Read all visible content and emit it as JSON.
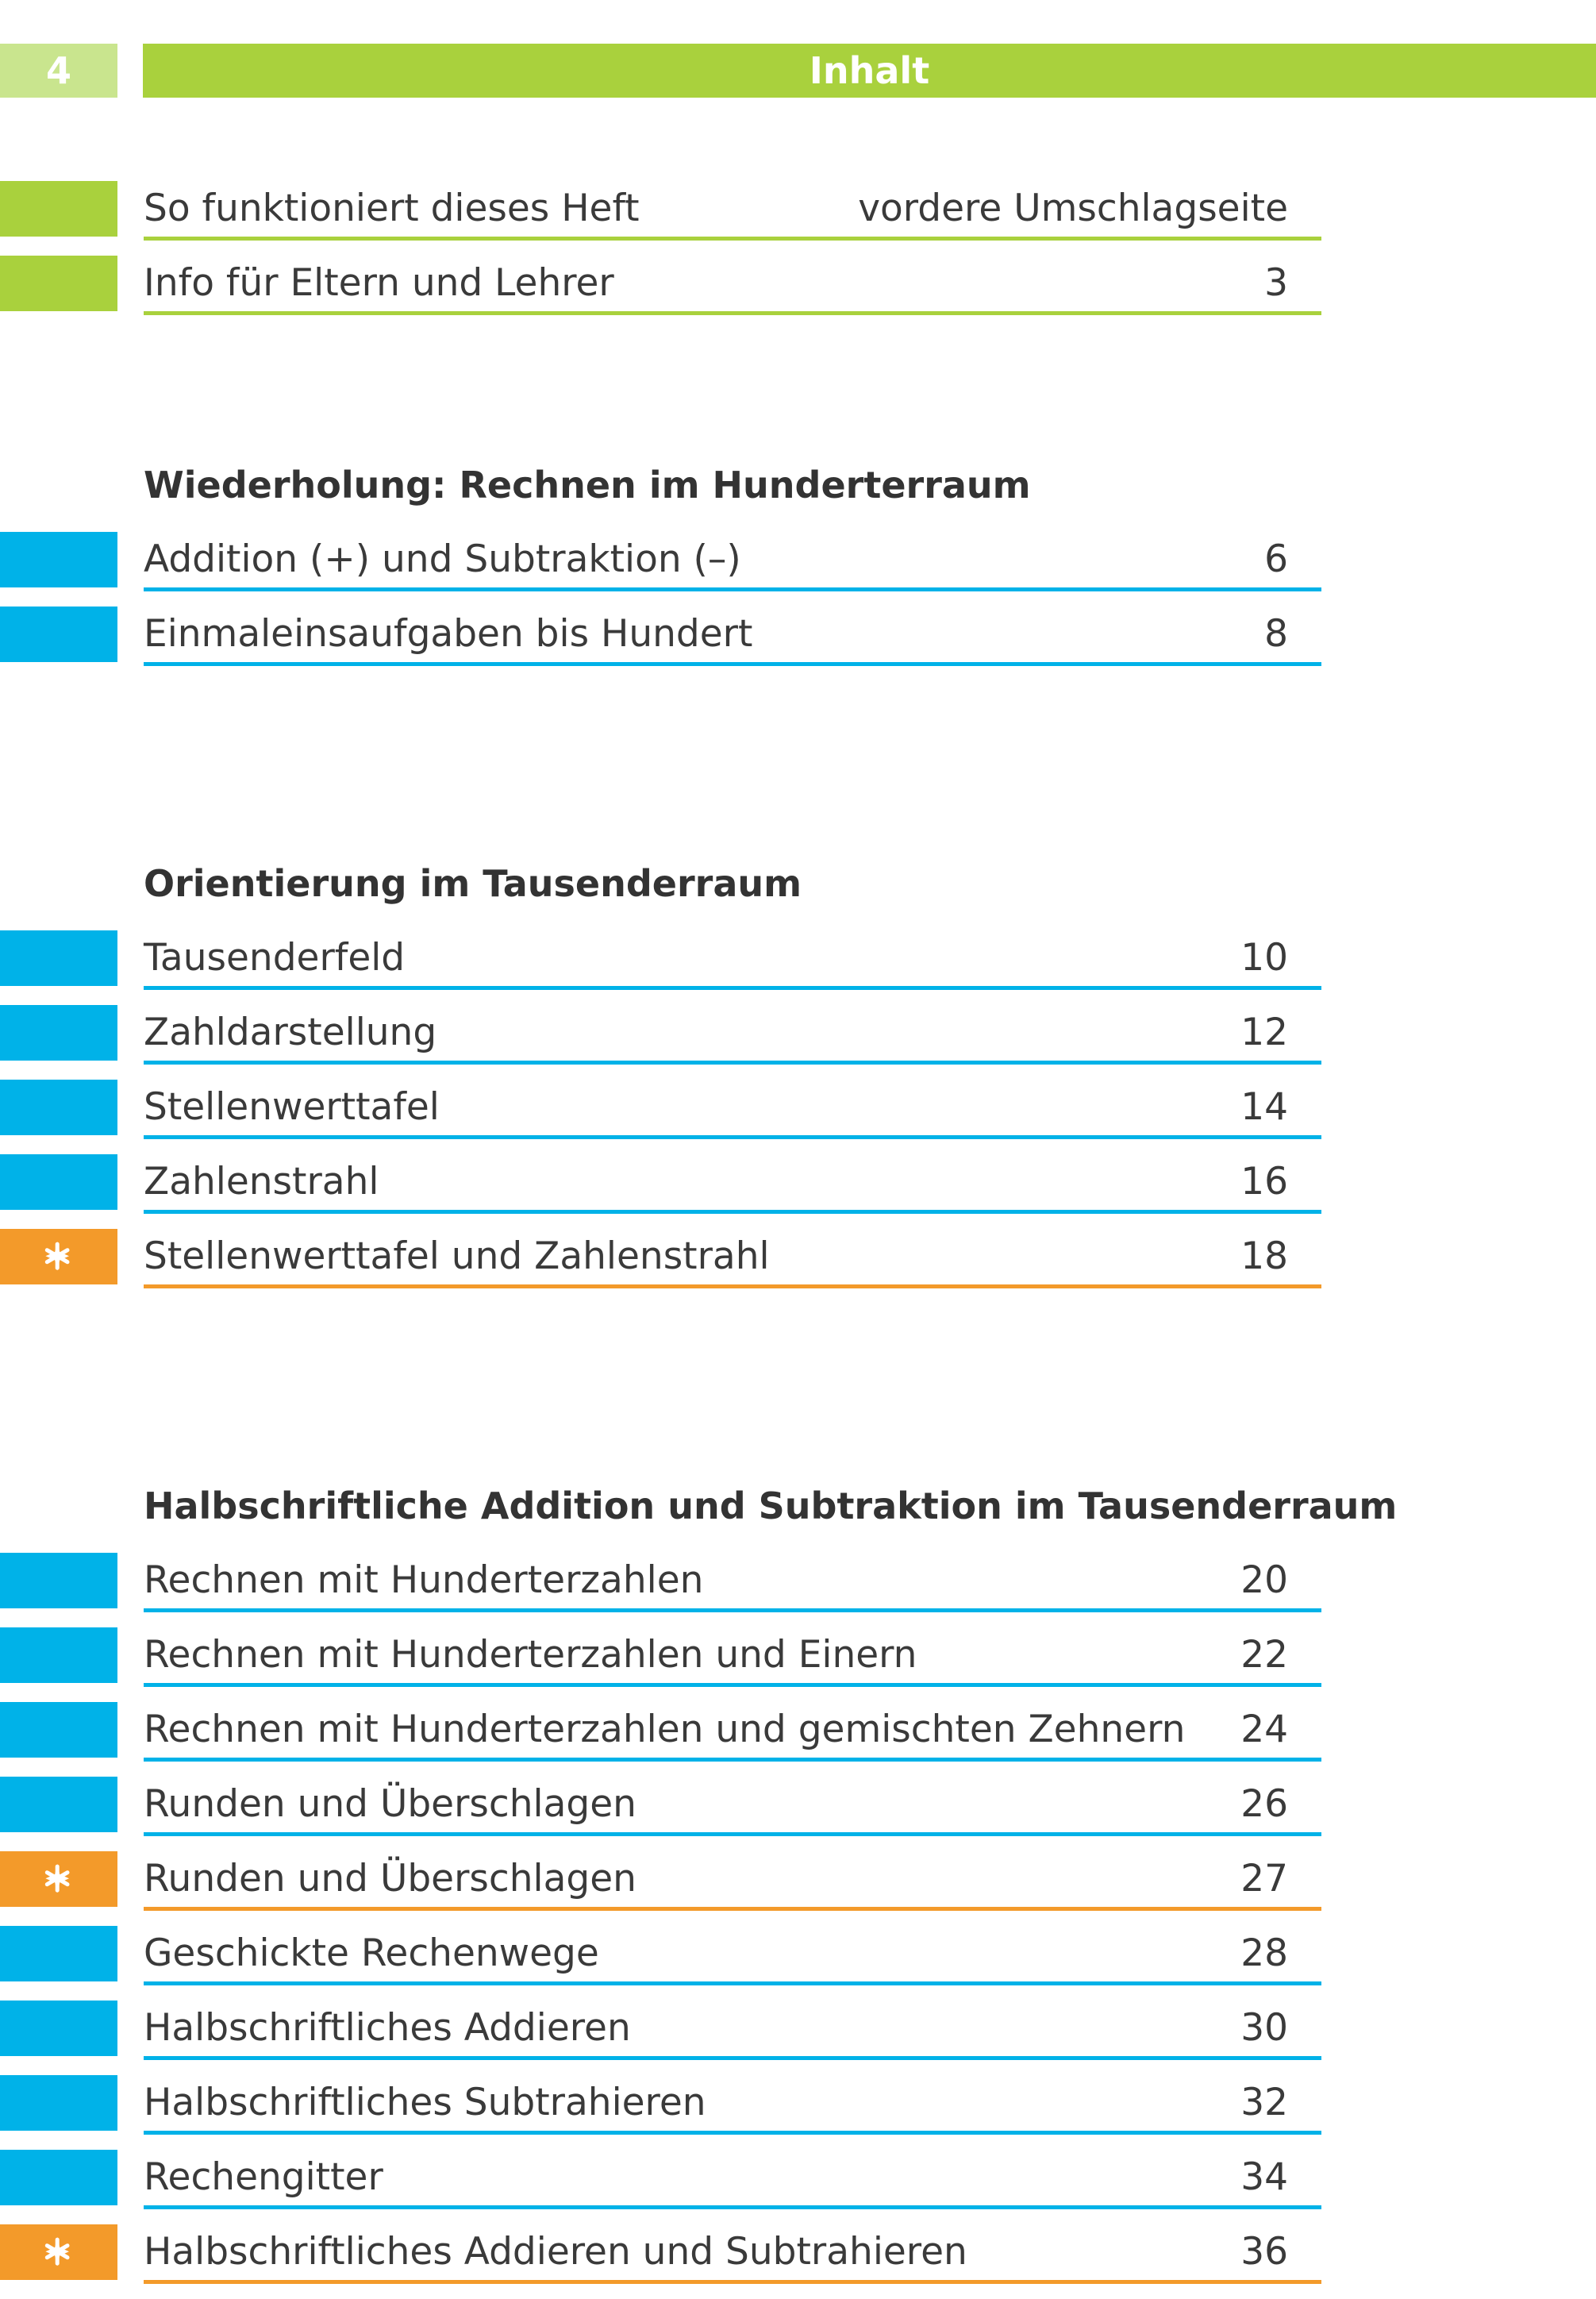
{
  "header": {
    "page_number": "4",
    "title": "Inhalt"
  },
  "colors": {
    "green": "#a9d13d",
    "light_green": "#c9e58e",
    "blue": "#00b2e8",
    "orange": "#f39a2a",
    "text": "#3a3a3a"
  },
  "intro": {
    "entries": [
      {
        "label": "So funktioniert dieses Heft",
        "page": "vordere Umschlagseite",
        "marker": "green"
      },
      {
        "label": "Info für Eltern und Lehrer",
        "page": "3",
        "marker": "green"
      }
    ]
  },
  "sections": [
    {
      "heading": "Wiederholung: Rechnen im Hunderterraum",
      "entries": [
        {
          "label": "Addition (+) und Subtraktion (–)",
          "page": "6",
          "marker": "blue"
        },
        {
          "label": "Einmaleinsaufgaben bis Hundert",
          "page": "8",
          "marker": "blue"
        }
      ]
    },
    {
      "heading": "Orientierung im Tausenderraum",
      "entries": [
        {
          "label": "Tausenderfeld",
          "page": "10",
          "marker": "blue"
        },
        {
          "label": "Zahldarstellung",
          "page": "12",
          "marker": "blue"
        },
        {
          "label": "Stellenwerttafel",
          "page": "14",
          "marker": "blue"
        },
        {
          "label": "Zahlenstrahl",
          "page": "16",
          "marker": "blue"
        },
        {
          "label": "Stellenwerttafel und Zahlenstrahl",
          "page": "18",
          "marker": "orange",
          "icon": "star-icon"
        }
      ]
    },
    {
      "heading": "Halbschriftliche Addition und Subtraktion im Tausenderraum",
      "entries": [
        {
          "label": "Rechnen mit Hunderterzahlen",
          "page": "20",
          "marker": "blue"
        },
        {
          "label": "Rechnen mit Hunderterzahlen und Einern",
          "page": "22",
          "marker": "blue"
        },
        {
          "label": "Rechnen mit Hunderterzahlen und gemischten Zehnern",
          "page": "24",
          "marker": "blue"
        },
        {
          "label": "Runden und Überschlagen",
          "page": "26",
          "marker": "blue"
        },
        {
          "label": "Runden und Überschlagen",
          "page": "27",
          "marker": "orange",
          "icon": "star-icon"
        },
        {
          "label": "Geschickte Rechenwege",
          "page": "28",
          "marker": "blue"
        },
        {
          "label": "Halbschriftliches Addieren",
          "page": "30",
          "marker": "blue"
        },
        {
          "label": "Halbschriftliches Subtrahieren",
          "page": "32",
          "marker": "blue"
        },
        {
          "label": "Rechengitter",
          "page": "34",
          "marker": "blue"
        },
        {
          "label": "Halbschriftliches Addieren und Subtrahieren",
          "page": "36",
          "marker": "orange",
          "icon": "star-icon"
        }
      ]
    }
  ]
}
